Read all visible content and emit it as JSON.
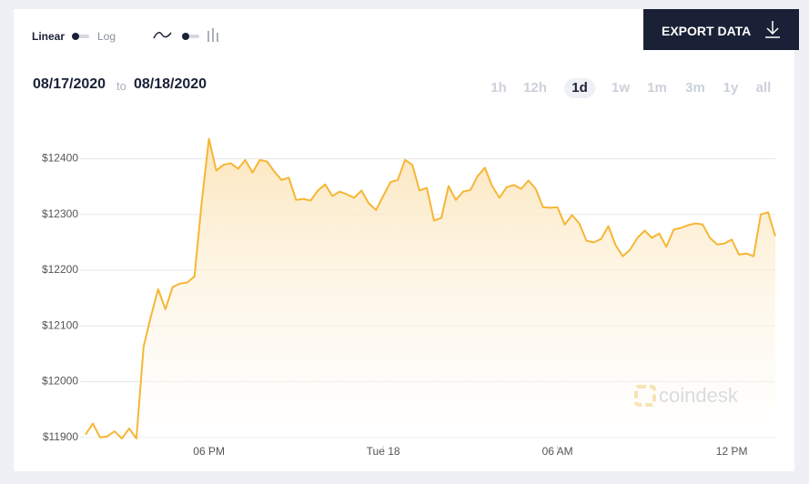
{
  "controls": {
    "scale_options": [
      "Linear",
      "Log"
    ],
    "export_label": "EXPORT DATA",
    "date_from": "08/17/2020",
    "date_sep": "to",
    "date_to": "08/18/2020",
    "ranges": [
      "1h",
      "12h",
      "1d",
      "1w",
      "1m",
      "3m",
      "1y",
      "all"
    ],
    "active_range": 2,
    "watermark": "coindesk"
  },
  "chart_data": {
    "type": "area",
    "color": "#f6b636",
    "grid": true,
    "x": [
      13.75,
      14,
      14.25,
      14.5,
      14.75,
      15,
      15.25,
      15.5,
      15.75,
      16,
      16.25,
      16.5,
      16.75,
      17,
      17.25,
      17.5,
      17.75,
      18,
      18.25,
      18.5,
      18.75,
      19,
      19.25,
      19.5,
      19.75,
      20,
      20.25,
      20.5,
      20.75,
      21,
      21.25,
      21.5,
      21.75,
      22,
      22.25,
      22.5,
      22.75,
      23,
      23.25,
      23.5,
      23.75,
      24,
      24.25,
      24.5,
      24.75,
      25,
      25.25,
      25.5,
      25.75,
      26,
      26.25,
      26.5,
      26.75,
      27,
      27.25,
      27.5,
      27.75,
      28,
      28.25,
      28.5,
      28.75,
      29,
      29.25,
      29.5,
      29.75,
      30,
      30.25,
      30.5,
      30.75,
      31,
      31.25,
      31.5,
      31.75,
      32,
      32.25,
      32.5,
      32.75,
      33,
      33.25,
      33.5,
      33.75,
      34,
      34.25,
      34.5,
      34.75,
      35,
      35.25,
      35.5,
      35.75,
      36,
      36.25,
      36.5,
      36.75,
      37,
      37.25,
      37.5
    ],
    "values": [
      11905,
      11925,
      11900,
      11902,
      11911,
      11898,
      11916,
      11898,
      12063,
      12117,
      12166,
      12130,
      12170,
      12176,
      12178,
      12189,
      12323,
      12436,
      12379,
      12389,
      12392,
      12382,
      12398,
      12375,
      12398,
      12395,
      12377,
      12362,
      12366,
      12326,
      12328,
      12325,
      12343,
      12354,
      12333,
      12341,
      12336,
      12330,
      12343,
      12320,
      12308,
      12333,
      12358,
      12362,
      12398,
      12389,
      12343,
      12348,
      12289,
      12294,
      12351,
      12326,
      12341,
      12344,
      12369,
      12384,
      12351,
      12330,
      12349,
      12353,
      12346,
      12361,
      12346,
      12313,
      12312,
      12313,
      12282,
      12299,
      12284,
      12253,
      12250,
      12256,
      12279,
      12245,
      12225,
      12237,
      12258,
      12271,
      12258,
      12266,
      12242,
      12273,
      12276,
      12281,
      12284,
      12282,
      12258,
      12246,
      12248,
      12255,
      12228,
      12230,
      12225,
      12300,
      12304,
      12261
    ],
    "xlim": [
      13.75,
      37.5
    ],
    "xticks": [
      {
        "value": 18,
        "label": "06 PM"
      },
      {
        "value": 24,
        "label": "Tue 18"
      },
      {
        "value": 30,
        "label": "06 AM"
      },
      {
        "value": 36,
        "label": "12 PM"
      }
    ],
    "ylim": [
      11885,
      12440
    ],
    "yticks": [
      {
        "value": 11900,
        "label": "$11900"
      },
      {
        "value": 12000,
        "label": "$12000"
      },
      {
        "value": 12100,
        "label": "$12100"
      },
      {
        "value": 12200,
        "label": "$12200"
      },
      {
        "value": 12300,
        "label": "$12300"
      },
      {
        "value": 12400,
        "label": "$12400"
      }
    ]
  }
}
